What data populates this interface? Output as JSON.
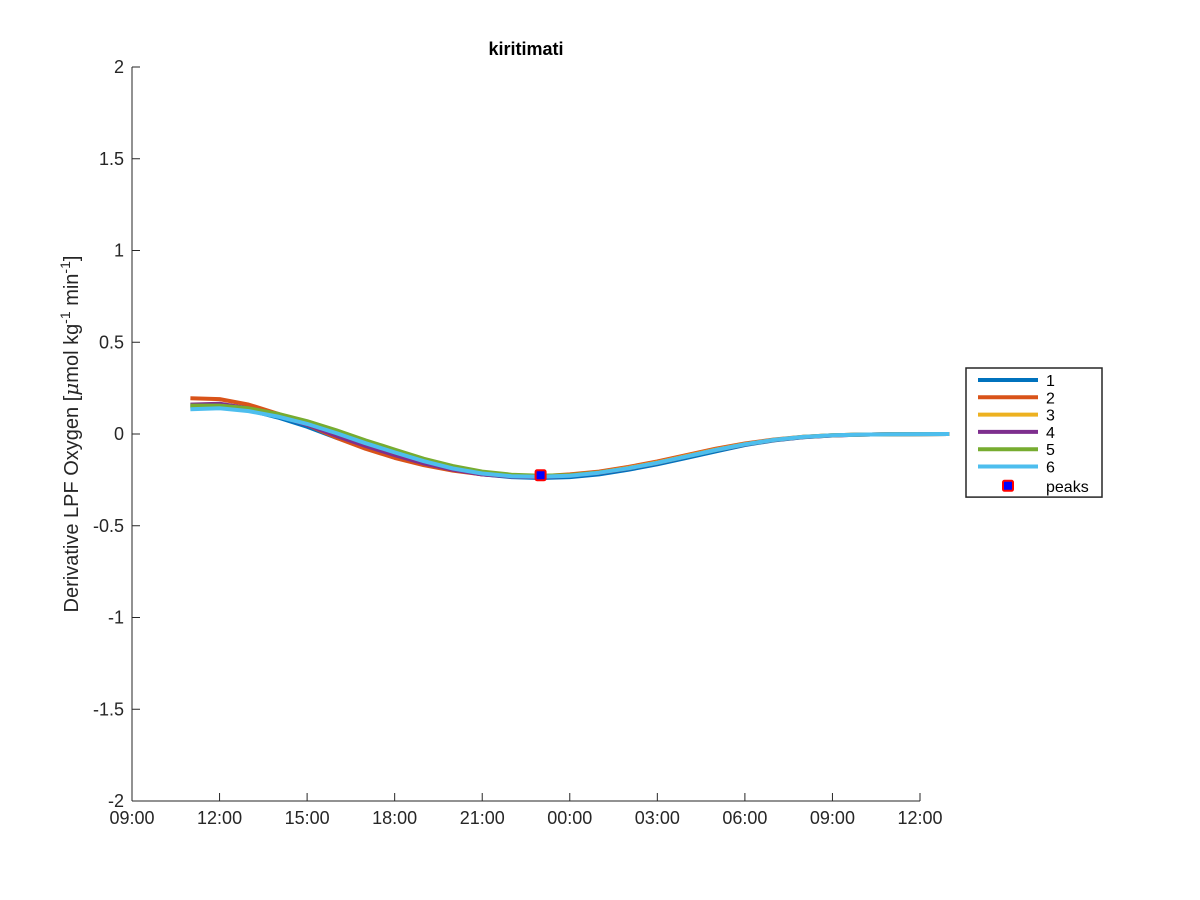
{
  "chart_data": {
    "type": "line",
    "title": "kiritimati",
    "ylabel": "Derivative LPF Oxygen [",
    "ylabel_mu": "μ",
    "ylabel_unit1": "mol kg",
    "ylabel_sup1": "-1",
    "ylabel_unit2": " min",
    "ylabel_sup2": "-1",
    "ylabel_close": "]",
    "xlabel": "",
    "x_ticks": [
      "09:00",
      "12:00",
      "15:00",
      "18:00",
      "21:00",
      "00:00",
      "03:00",
      "06:00",
      "09:00",
      "12:00"
    ],
    "y_ticks": [
      "2",
      "1.5",
      "1",
      "0.5",
      "0",
      "-0.5",
      "-1",
      "-1.5",
      "-2"
    ],
    "ylim": [
      -2,
      2
    ],
    "xlim_hours": [
      9,
      36
    ],
    "x_units": "hours since 09:00 of first day shown",
    "grid": false,
    "legend_position": "outside-right",
    "series": [
      {
        "name": "1",
        "color": "#0072BD",
        "points": [
          [
            11,
            0.15
          ],
          [
            12,
            0.155
          ],
          [
            13,
            0.13
          ],
          [
            14,
            0.09
          ],
          [
            15,
            0.04
          ],
          [
            16,
            -0.02
          ],
          [
            17,
            -0.07
          ],
          [
            18,
            -0.12
          ],
          [
            19,
            -0.16
          ],
          [
            20,
            -0.195
          ],
          [
            21,
            -0.22
          ],
          [
            22,
            -0.235
          ],
          [
            23,
            -0.24
          ],
          [
            24,
            -0.235
          ],
          [
            25,
            -0.22
          ],
          [
            26,
            -0.195
          ],
          [
            27,
            -0.165
          ],
          [
            28,
            -0.13
          ],
          [
            29,
            -0.095
          ],
          [
            30,
            -0.06
          ],
          [
            31,
            -0.035
          ],
          [
            32,
            -0.018
          ],
          [
            33,
            -0.008
          ],
          [
            34,
            -0.003
          ],
          [
            35,
            -0.001
          ],
          [
            37,
            0.0
          ]
        ]
      },
      {
        "name": "2",
        "color": "#D95319",
        "points": [
          [
            11,
            0.195
          ],
          [
            12,
            0.19
          ],
          [
            13,
            0.16
          ],
          [
            14,
            0.11
          ],
          [
            15,
            0.05
          ],
          [
            16,
            -0.02
          ],
          [
            17,
            -0.08
          ],
          [
            18,
            -0.13
          ],
          [
            19,
            -0.17
          ],
          [
            20,
            -0.2
          ],
          [
            21,
            -0.22
          ],
          [
            22,
            -0.23
          ],
          [
            23,
            -0.23
          ],
          [
            24,
            -0.22
          ],
          [
            25,
            -0.205
          ],
          [
            26,
            -0.18
          ],
          [
            27,
            -0.15
          ],
          [
            28,
            -0.115
          ],
          [
            29,
            -0.08
          ],
          [
            30,
            -0.052
          ],
          [
            31,
            -0.03
          ],
          [
            32,
            -0.015
          ],
          [
            33,
            -0.007
          ],
          [
            34,
            -0.003
          ],
          [
            35,
            -0.001
          ],
          [
            37,
            0.0
          ]
        ]
      },
      {
        "name": "3",
        "color": "#EDB120",
        "points": [
          [
            11,
            0.14
          ],
          [
            12,
            0.145
          ],
          [
            13,
            0.135
          ],
          [
            14,
            0.105
          ],
          [
            15,
            0.065
          ],
          [
            16,
            0.015
          ],
          [
            17,
            -0.04
          ],
          [
            18,
            -0.09
          ],
          [
            19,
            -0.14
          ],
          [
            20,
            -0.18
          ],
          [
            21,
            -0.21
          ],
          [
            22,
            -0.225
          ],
          [
            23,
            -0.23
          ],
          [
            24,
            -0.225
          ],
          [
            25,
            -0.21
          ],
          [
            26,
            -0.185
          ],
          [
            27,
            -0.155
          ],
          [
            28,
            -0.12
          ],
          [
            29,
            -0.085
          ],
          [
            30,
            -0.055
          ],
          [
            31,
            -0.032
          ],
          [
            32,
            -0.016
          ],
          [
            33,
            -0.007
          ],
          [
            34,
            -0.003
          ],
          [
            35,
            -0.001
          ],
          [
            37,
            0.0
          ]
        ]
      },
      {
        "name": "4",
        "color": "#7E2F8E",
        "points": [
          [
            11,
            0.16
          ],
          [
            12,
            0.165
          ],
          [
            13,
            0.14
          ],
          [
            14,
            0.1
          ],
          [
            15,
            0.05
          ],
          [
            16,
            -0.01
          ],
          [
            17,
            -0.065
          ],
          [
            18,
            -0.115
          ],
          [
            19,
            -0.16
          ],
          [
            20,
            -0.195
          ],
          [
            21,
            -0.22
          ],
          [
            22,
            -0.232
          ],
          [
            23,
            -0.235
          ],
          [
            24,
            -0.228
          ],
          [
            25,
            -0.212
          ],
          [
            26,
            -0.188
          ],
          [
            27,
            -0.158
          ],
          [
            28,
            -0.123
          ],
          [
            29,
            -0.088
          ],
          [
            30,
            -0.057
          ],
          [
            31,
            -0.033
          ],
          [
            32,
            -0.017
          ],
          [
            33,
            -0.008
          ],
          [
            34,
            -0.003
          ],
          [
            35,
            -0.001
          ],
          [
            37,
            0.0
          ]
        ]
      },
      {
        "name": "5",
        "color": "#77AC30",
        "points": [
          [
            11,
            0.155
          ],
          [
            12,
            0.155
          ],
          [
            13,
            0.14
          ],
          [
            14,
            0.11
          ],
          [
            15,
            0.07
          ],
          [
            16,
            0.02
          ],
          [
            17,
            -0.035
          ],
          [
            18,
            -0.085
          ],
          [
            19,
            -0.135
          ],
          [
            20,
            -0.175
          ],
          [
            21,
            -0.205
          ],
          [
            22,
            -0.222
          ],
          [
            23,
            -0.228
          ],
          [
            24,
            -0.224
          ],
          [
            25,
            -0.21
          ],
          [
            26,
            -0.187
          ],
          [
            27,
            -0.157
          ],
          [
            28,
            -0.122
          ],
          [
            29,
            -0.087
          ],
          [
            30,
            -0.056
          ],
          [
            31,
            -0.032
          ],
          [
            32,
            -0.016
          ],
          [
            33,
            -0.007
          ],
          [
            34,
            -0.003
          ],
          [
            35,
            -0.001
          ],
          [
            37,
            0.0
          ]
        ]
      },
      {
        "name": "6",
        "color": "#4DBEEE",
        "points": [
          [
            11,
            0.135
          ],
          [
            12,
            0.14
          ],
          [
            13,
            0.125
          ],
          [
            14,
            0.095
          ],
          [
            15,
            0.055
          ],
          [
            16,
            0.005
          ],
          [
            17,
            -0.05
          ],
          [
            18,
            -0.1
          ],
          [
            19,
            -0.148
          ],
          [
            20,
            -0.188
          ],
          [
            21,
            -0.215
          ],
          [
            22,
            -0.23
          ],
          [
            23,
            -0.233
          ],
          [
            24,
            -0.227
          ],
          [
            25,
            -0.211
          ],
          [
            26,
            -0.187
          ],
          [
            27,
            -0.157
          ],
          [
            28,
            -0.122
          ],
          [
            29,
            -0.087
          ],
          [
            30,
            -0.056
          ],
          [
            31,
            -0.032
          ],
          [
            32,
            -0.016
          ],
          [
            33,
            -0.007
          ],
          [
            34,
            -0.003
          ],
          [
            35,
            -0.001
          ],
          [
            37,
            0.0
          ]
        ]
      }
    ],
    "peaks": {
      "name": "peaks",
      "marker_fill": "#0000FF",
      "marker_edge": "#FF0000",
      "points": [
        [
          23,
          -0.225
        ]
      ]
    }
  }
}
